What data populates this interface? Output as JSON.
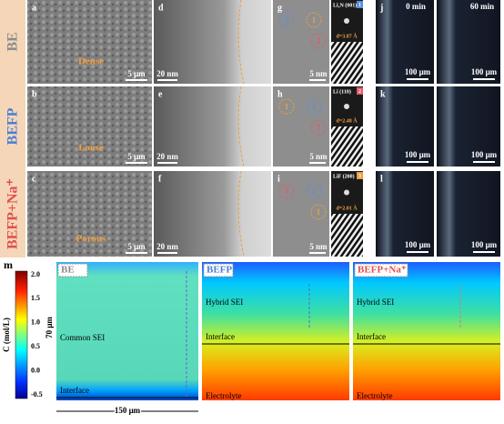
{
  "figure_label": "m",
  "rows": [
    {
      "label": "BE",
      "label_color": "#8c8c8c",
      "sem": {
        "letter": "a",
        "annotation": "Dense",
        "scale": "5 μm"
      },
      "tem": {
        "letter": "d",
        "scale": "20 nm"
      },
      "hrtem": {
        "letter": "g",
        "scale": "5 nm",
        "markers": [
          "2",
          "1",
          "3"
        ]
      },
      "fft": {
        "phase": "Li₃N (001)",
        "index": "1",
        "spacing": "d=3.87 Å"
      },
      "optical": {
        "letter": "j",
        "times": [
          "0 min",
          "60 min"
        ],
        "scales": [
          "100 μm",
          "100 μm"
        ]
      }
    },
    {
      "label": "BEFP",
      "label_color": "#4a7fd4",
      "sem": {
        "letter": "b",
        "annotation": "Loose",
        "scale": "5 μm"
      },
      "tem": {
        "letter": "e",
        "scale": "20 nm"
      },
      "hrtem": {
        "letter": "h",
        "scale": "5 nm",
        "markers": [
          "1",
          "2",
          "3"
        ]
      },
      "fft": {
        "phase": "Li (110)",
        "index": "2",
        "spacing": "d=2.48 Å"
      },
      "optical": {
        "letter": "k",
        "scales": [
          "100 μm",
          "100 μm"
        ]
      }
    },
    {
      "label": "BEFP+Na⁺",
      "label_color": "#e05050",
      "sem": {
        "letter": "c",
        "annotation": "Porous",
        "scale": "5 μm"
      },
      "tem": {
        "letter": "f",
        "scale": "20 nm"
      },
      "hrtem": {
        "letter": "i",
        "scale": "5 nm",
        "markers": [
          "3",
          "2",
          "1"
        ]
      },
      "fft": {
        "phase": "LiF (200)",
        "index": "3",
        "spacing": "d=2.01 Å"
      },
      "optical": {
        "letter": "l",
        "scales": [
          "100 μm",
          "100 μm"
        ]
      }
    }
  ],
  "colorbar": {
    "label": "C (mol/L)",
    "ticks": [
      "2.0",
      "1.5",
      "1.0",
      "0.5",
      "0.0",
      "-0.5"
    ]
  },
  "simulations": [
    {
      "title": "BE",
      "sei": "Common SEI",
      "interface": "Interface"
    },
    {
      "title": "BEFP",
      "sei": "Hybrid SEI",
      "interface": "Interface",
      "bottom": "Electrolyte"
    },
    {
      "title": "BEFP+Na⁺",
      "sei": "Hybrid SEI",
      "interface": "Interface",
      "bottom": "Electrolyte"
    }
  ],
  "height_label": "70 μm",
  "width_label": "150 μm"
}
